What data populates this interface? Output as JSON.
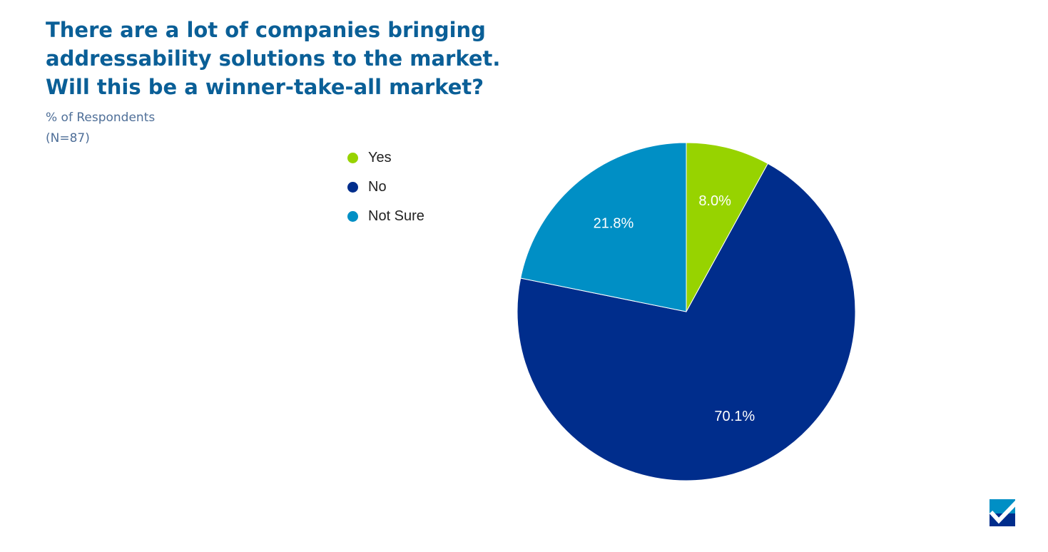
{
  "chart_data": {
    "type": "pie",
    "title": [
      "There are a lot of companies bringing",
      "addressability solutions to the market.",
      "Will this be a winner-take-all market?"
    ],
    "subtitle": "% of Respondents",
    "sample_size": "(N=87)",
    "legend_position": "left",
    "slices": [
      {
        "name": "Yes",
        "value": 8.0,
        "label": "8.0%",
        "color": "#97d300"
      },
      {
        "name": "No",
        "value": 70.1,
        "label": "70.1%",
        "color": "#002d8c"
      },
      {
        "name": "Not Sure",
        "value": 21.8,
        "label": "21.8%",
        "color": "#008fc5"
      }
    ]
  },
  "logo": {
    "icon": "checkmark-logo-icon"
  }
}
